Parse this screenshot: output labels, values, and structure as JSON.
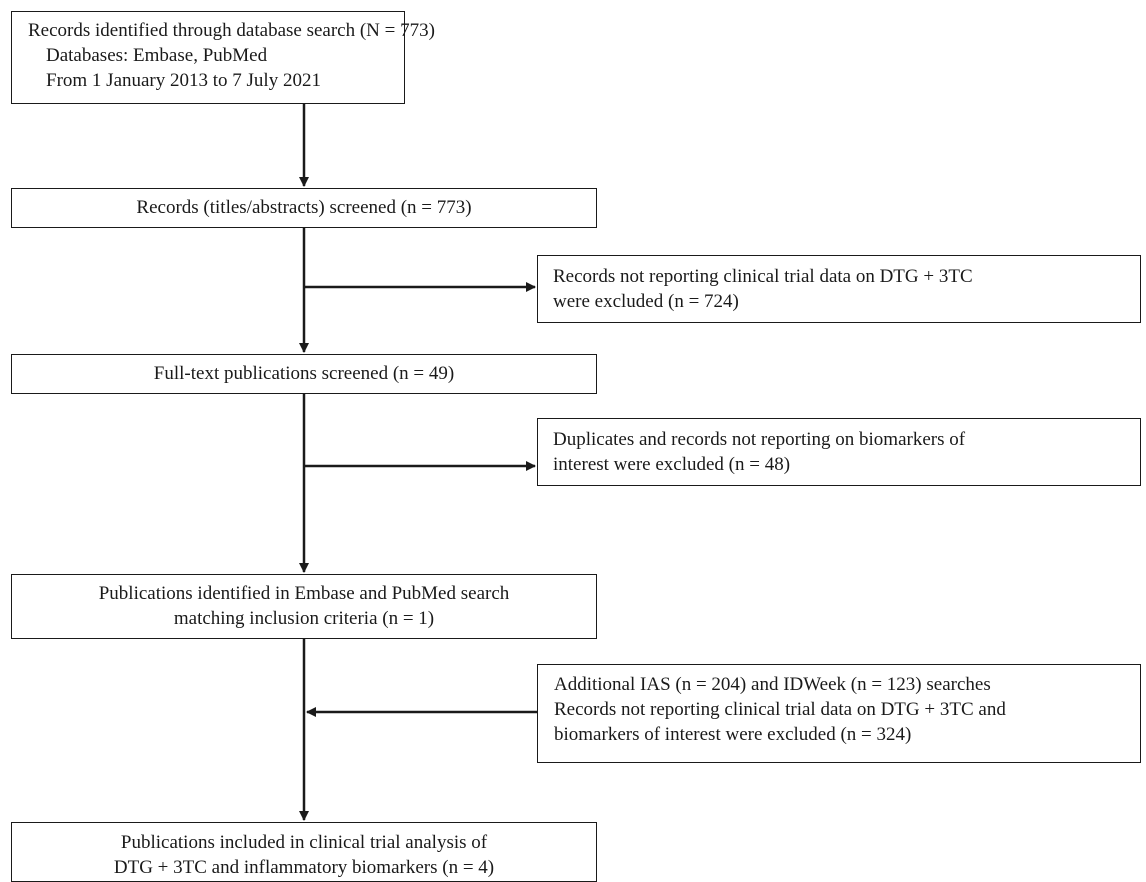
{
  "flowchart": {
    "search": {
      "line1": "Records identified through database search (N = 773)",
      "line2": "Databases: Embase, PubMed",
      "line3": "From 1 January 2013 to 7 July 2021"
    },
    "screened": {
      "line1": "Records (titles/abstracts) screened (n = 773)"
    },
    "exclusion1": {
      "line1": "Records not reporting clinical trial data on DTG + 3TC",
      "line2": "were excluded (n = 724)"
    },
    "fulltext": {
      "line1": "Full-text publications screened (n = 49)"
    },
    "exclusion2": {
      "line1": "Duplicates and records not reporting on biomarkers of",
      "line2": "interest were excluded (n = 48)"
    },
    "identified": {
      "line1": "Publications identified in Embase and PubMed search",
      "line2": "matching inclusion criteria (n = 1)"
    },
    "additional": {
      "line1": "Additional IAS (n = 204) and IDWeek (n = 123) searches",
      "line2": "Records not reporting clinical trial data on DTG + 3TC and",
      "line3": "biomarkers of interest were excluded (n = 324)"
    },
    "included": {
      "line1": "Publications included in clinical trial analysis of",
      "line2": "DTG + 3TC and inflammatory biomarkers (n = 4)"
    }
  }
}
